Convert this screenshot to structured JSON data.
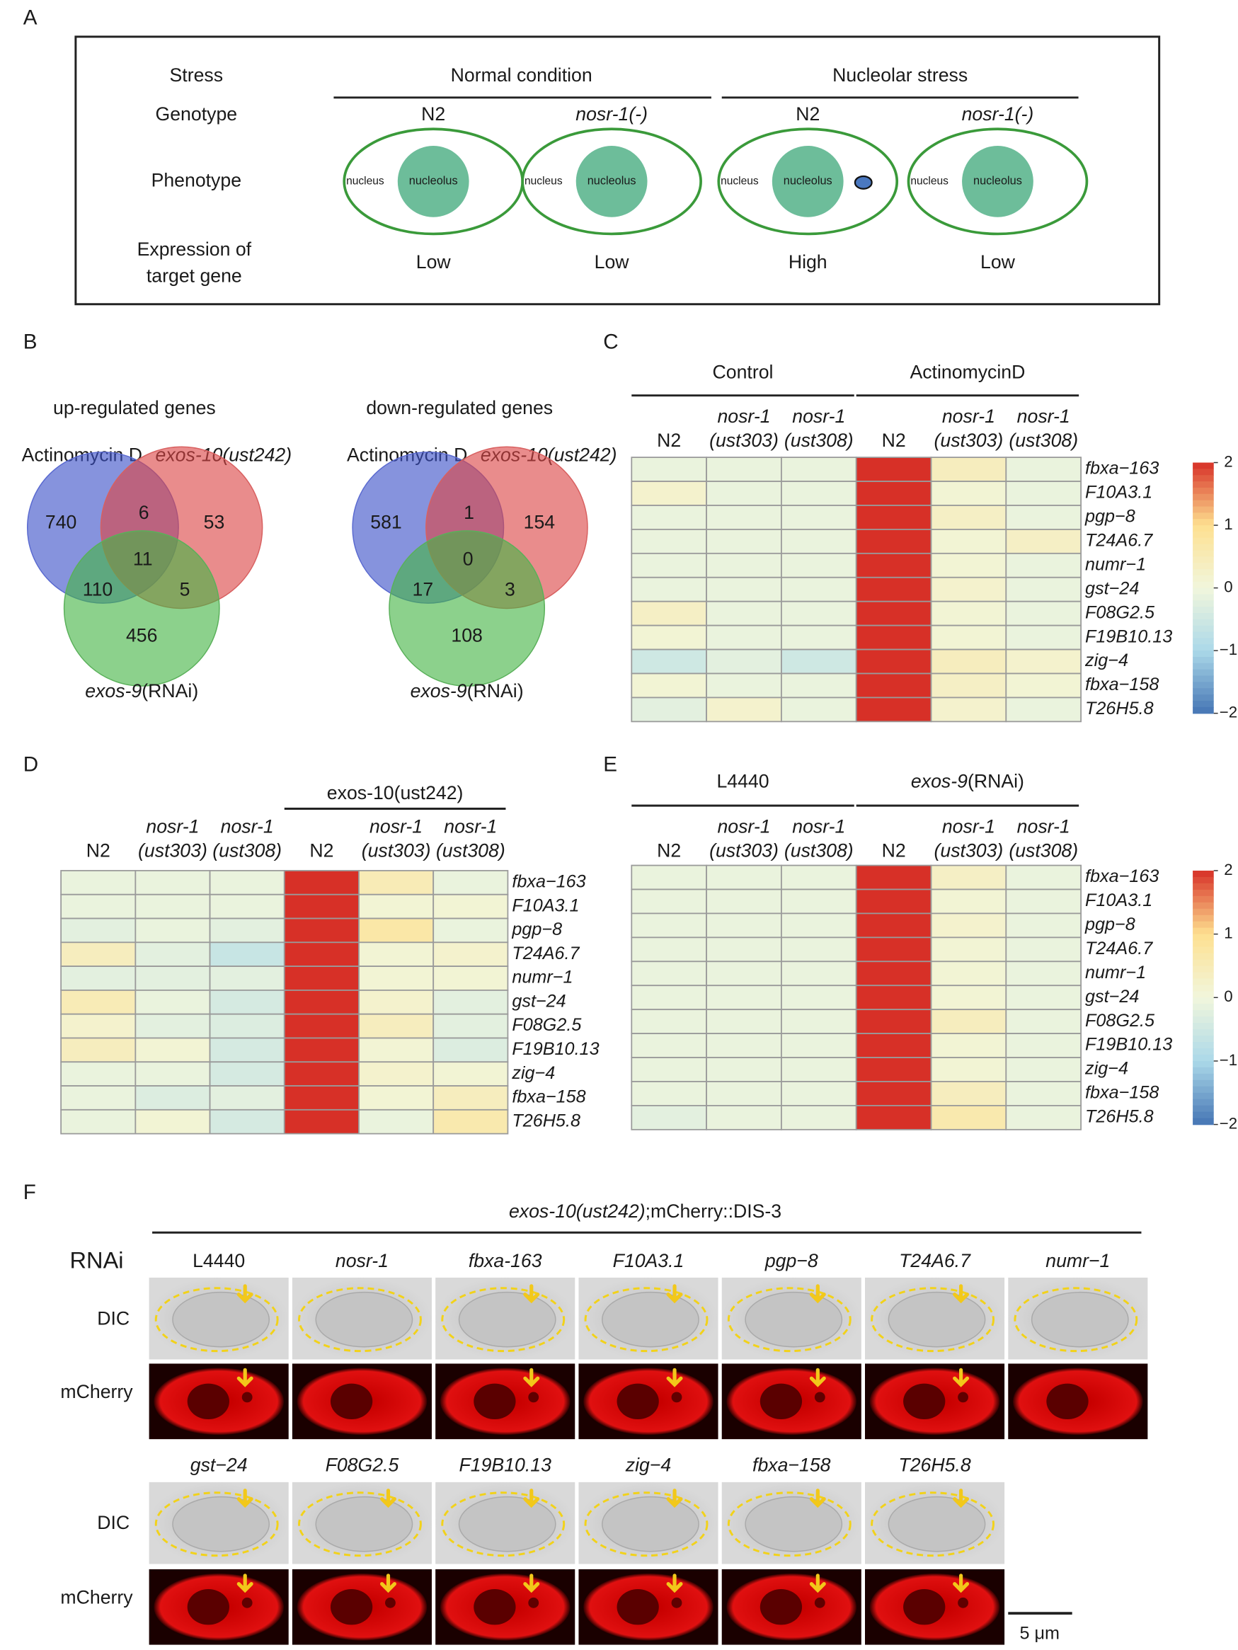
{
  "panel_labels": [
    "A",
    "B",
    "C",
    "D",
    "E",
    "F"
  ],
  "panel_a": {
    "row_labels": [
      "Stress",
      "Genotype",
      "Phenotype"
    ],
    "expression_label": [
      "Expression of",
      "target gene"
    ],
    "groups": [
      "Normal condition",
      "Nucleolar stress"
    ],
    "genotypes": [
      "N2",
      "nosr-1(-)",
      "N2",
      "nosr-1(-)"
    ],
    "expression": [
      "Low",
      "Low",
      "High",
      "Low"
    ],
    "nucleus": "nucleus",
    "nucleolus": "nucleolus"
  },
  "panel_b": {
    "venns": [
      {
        "title": "up-regulated genes",
        "set_a": "Actinomycin D",
        "set_b": "exos-10(ust242)",
        "set_c": [
          "exos-9",
          "(RNAi)"
        ],
        "counts": [
          740,
          6,
          53,
          11,
          110,
          5,
          456
        ]
      },
      {
        "title": "down-regulated genes",
        "set_a": "Actinomycin D",
        "set_b": "exos-10(ust242)",
        "set_c": [
          "exos-9",
          "(RNAi)"
        ],
        "counts": [
          581,
          1,
          154,
          0,
          17,
          3,
          108
        ]
      }
    ]
  },
  "heatmap_scale": {
    "vlim": [
      -2,
      2
    ],
    "colors": [
      "#4575b4",
      "#abd9e9",
      "#f1f6dc",
      "#fee090",
      "#d73027"
    ],
    "ticks": [
      2,
      1,
      0,
      {
        "value": -1,
        "label": "−1"
      },
      {
        "value": -2,
        "label": "−2"
      }
    ]
  },
  "heatmaps": [
    {
      "groups": [
        "Control",
        "ActinomycinD"
      ],
      "columns": [
        [
          "N2"
        ],
        [
          "nosr-1",
          "(ust303)"
        ],
        [
          "nosr-1",
          "(ust308)"
        ],
        [
          "N2"
        ],
        [
          "nosr-1",
          "(ust303)"
        ],
        [
          "nosr-1",
          "(ust308)"
        ]
      ],
      "genes": [
        "fbxa−163",
        "F10A3.1",
        "pgp−8",
        "T24A6.7",
        "numr−1",
        "gst−24",
        "F08G2.5",
        "F19B10.13",
        "zig−4",
        "fbxa−158",
        "T26H5.8"
      ],
      "values": [
        [
          -0.1,
          -0.1,
          -0.1,
          2,
          0.4,
          -0.1
        ],
        [
          0.2,
          -0.1,
          -0.1,
          2,
          0.1,
          -0.1
        ],
        [
          -0.1,
          -0.1,
          -0.1,
          2,
          0.3,
          -0.1
        ],
        [
          -0.1,
          -0.1,
          -0.1,
          2,
          0.1,
          0.3
        ],
        [
          -0.1,
          -0.1,
          -0.1,
          2,
          0.1,
          -0.1
        ],
        [
          -0.1,
          -0.1,
          -0.1,
          2,
          0.2,
          -0.1
        ],
        [
          0.3,
          -0.1,
          -0.1,
          2,
          0.1,
          -0.1
        ],
        [
          0.1,
          -0.1,
          -0.1,
          2,
          0.1,
          -0.1
        ],
        [
          -0.5,
          -0.2,
          -0.5,
          2,
          0.4,
          0.2
        ],
        [
          0.1,
          -0.1,
          -0.1,
          2,
          0.3,
          0.1
        ],
        [
          -0.2,
          0.2,
          -0.1,
          2,
          0.2,
          -0.1
        ]
      ],
      "colorbar": true
    },
    {
      "groups": [
        null,
        "exos-10(ust242)"
      ],
      "columns": [
        [
          "N2"
        ],
        [
          "nosr-1",
          "(ust303)"
        ],
        [
          "nosr-1",
          "(ust308)"
        ],
        [
          "N2"
        ],
        [
          "nosr-1",
          "(ust303)"
        ],
        [
          "nosr-1",
          "(ust308)"
        ]
      ],
      "genes": [
        "fbxa−163",
        "F10A3.1",
        "pgp−8",
        "T24A6.7",
        "numr−1",
        "gst−24",
        "F08G2.5",
        "F19B10.13",
        "zig−4",
        "fbxa−158",
        "T26H5.8"
      ],
      "values": [
        [
          -0.1,
          -0.1,
          -0.1,
          2,
          0.5,
          -0.1
        ],
        [
          -0.1,
          -0.1,
          -0.1,
          2,
          0.1,
          0.1
        ],
        [
          -0.2,
          -0.1,
          -0.2,
          2,
          0.7,
          -0.1
        ],
        [
          0.4,
          -0.2,
          -0.6,
          2,
          0.1,
          0.2
        ],
        [
          -0.2,
          -0.2,
          -0.2,
          2,
          0.1,
          0.1
        ],
        [
          0.5,
          -0.1,
          -0.4,
          2,
          0.2,
          -0.2
        ],
        [
          0.2,
          -0.2,
          -0.3,
          2,
          0.4,
          -0.2
        ],
        [
          0.4,
          0.1,
          -0.4,
          2,
          0.1,
          -0.3
        ],
        [
          -0.1,
          -0.1,
          -0.4,
          2,
          0.2,
          0.1
        ],
        [
          -0.1,
          -0.3,
          -0.2,
          2,
          0.1,
          0.4
        ],
        [
          -0.1,
          0.1,
          -0.4,
          2,
          -0.1,
          0.6
        ]
      ],
      "colorbar": false
    },
    {
      "groups": [
        "L4440",
        [
          "exos-9",
          "(RNAi)"
        ]
      ],
      "columns": [
        [
          "N2"
        ],
        [
          "nosr-1",
          "(ust303)"
        ],
        [
          "nosr-1",
          "(ust308)"
        ],
        [
          "N2"
        ],
        [
          "nosr-1",
          "(ust303)"
        ],
        [
          "nosr-1",
          "(ust308)"
        ]
      ],
      "genes": [
        "fbxa−163",
        "F10A3.1",
        "pgp−8",
        "T24A6.7",
        "numr−1",
        "gst−24",
        "F08G2.5",
        "F19B10.13",
        "zig−4",
        "fbxa−158",
        "T26H5.8"
      ],
      "values": [
        [
          -0.1,
          -0.1,
          -0.1,
          2,
          0.3,
          -0.1
        ],
        [
          -0.1,
          -0.1,
          -0.1,
          2,
          0.1,
          -0.1
        ],
        [
          -0.1,
          -0.1,
          -0.1,
          2,
          0.2,
          -0.1
        ],
        [
          -0.1,
          -0.1,
          -0.1,
          2,
          0.1,
          -0.1
        ],
        [
          -0.1,
          -0.1,
          -0.1,
          2,
          0.1,
          -0.1
        ],
        [
          -0.1,
          -0.1,
          -0.1,
          2,
          0.1,
          -0.1
        ],
        [
          -0.1,
          -0.1,
          -0.1,
          2,
          0.4,
          -0.1
        ],
        [
          -0.1,
          -0.1,
          -0.1,
          2,
          0.1,
          -0.1
        ],
        [
          -0.1,
          -0.1,
          -0.1,
          2,
          0.1,
          -0.1
        ],
        [
          -0.1,
          -0.1,
          -0.1,
          2,
          0.4,
          -0.1
        ],
        [
          -0.2,
          -0.1,
          -0.1,
          2,
          0.6,
          -0.1
        ]
      ],
      "colorbar": true
    }
  ],
  "panel_f": {
    "title": [
      "exos-10(ust242)",
      ";mCherry::DIS-3"
    ],
    "rnai_label": "RNAi",
    "row_labels": [
      "DIC",
      "mCherry"
    ],
    "rnai_rows": [
      [
        "L4440",
        "nosr-1",
        "fbxa-163",
        "F10A3.1",
        "pgp−8",
        "T24A6.7",
        "numr−1"
      ],
      [
        "gst−24",
        "F08G2.5",
        "F19B10.13",
        "zig−4",
        "fbxa−158",
        "T26H5.8"
      ]
    ],
    "scale_bar": "5 μm"
  }
}
